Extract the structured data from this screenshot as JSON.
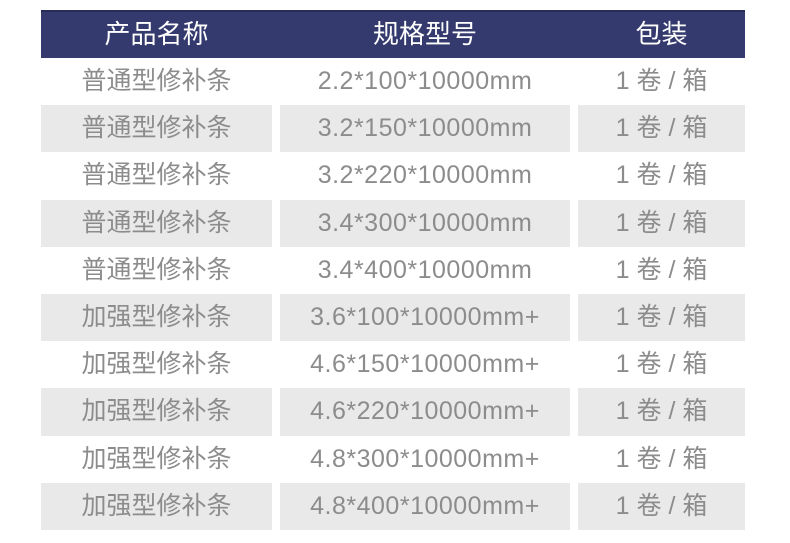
{
  "colors": {
    "header_bg": "#343A6E",
    "header_top_edge": "#282D58",
    "header_text": "#FFFFFF",
    "row_bg": "#FFFFFF",
    "row_alt_bg": "#E9E9E9",
    "cell_text": "#8C8C8C",
    "page_bg": "#FFFFFF"
  },
  "chart_data": {
    "type": "table",
    "title": "",
    "columns": [
      "产品名称",
      "规格型号",
      "包装"
    ],
    "rows": [
      [
        "普通型修补条",
        "2.2*100*10000mm",
        "1 卷 / 箱"
      ],
      [
        "普通型修补条",
        "3.2*150*10000mm",
        "1 卷 / 箱"
      ],
      [
        "普通型修补条",
        "3.2*220*10000mm",
        "1 卷 / 箱"
      ],
      [
        "普通型修补条",
        "3.4*300*10000mm",
        "1 卷 / 箱"
      ],
      [
        "普通型修补条",
        "3.4*400*10000mm",
        "1 卷 / 箱"
      ],
      [
        "加强型修补条",
        "3.6*100*10000mm+",
        "1 卷 / 箱"
      ],
      [
        "加强型修补条",
        "4.6*150*10000mm+",
        "1 卷 / 箱"
      ],
      [
        "加强型修补条",
        "4.6*220*10000mm+",
        "1 卷 / 箱"
      ],
      [
        "加强型修补条",
        "4.8*300*10000mm+",
        "1 卷 / 箱"
      ],
      [
        "加强型修补条",
        "4.8*400*10000mm+",
        "1 卷 / 箱"
      ]
    ],
    "layout": {
      "striped": true,
      "first_data_row_bg": "white",
      "header_position": "top"
    }
  }
}
